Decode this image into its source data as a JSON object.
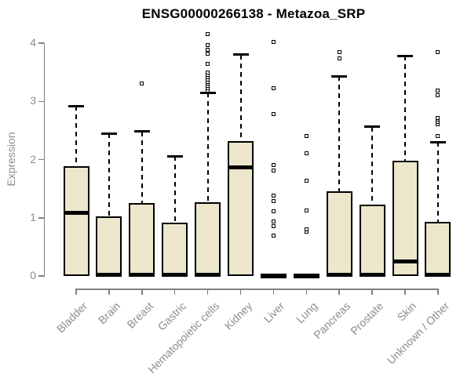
{
  "chart_data": {
    "type": "boxplot",
    "title": "ENSG00000266138 - Metazoa_SRP",
    "ylabel": "Expression",
    "xlabel": "",
    "ylim": [
      0,
      4
    ],
    "yticks": [
      0,
      1,
      2,
      3,
      4
    ],
    "grid": false,
    "legend": null,
    "categories": [
      "Bladder",
      "Brain",
      "Breast",
      "Gastric",
      "Hematopoietic cells",
      "Kidney",
      "Liver",
      "Lung",
      "Pancreas",
      "Prostate",
      "Skin",
      "Unknown / Other"
    ],
    "boxes": [
      {
        "category": "Bladder",
        "low": 0,
        "q1": 0,
        "median": 1.08,
        "q3": 1.88,
        "high": 2.92,
        "outliers": []
      },
      {
        "category": "Brain",
        "low": 0,
        "q1": 0,
        "median": 0.02,
        "q3": 1.03,
        "high": 2.45,
        "outliers": []
      },
      {
        "category": "Breast",
        "low": 0,
        "q1": 0,
        "median": 0.02,
        "q3": 1.25,
        "high": 2.48,
        "outliers": [
          3.3
        ]
      },
      {
        "category": "Gastric",
        "low": 0,
        "q1": 0,
        "median": 0.02,
        "q3": 0.92,
        "high": 2.06,
        "outliers": []
      },
      {
        "category": "Hematopoietic cells",
        "low": 0,
        "q1": 0,
        "median": 0.02,
        "q3": 1.26,
        "high": 3.15,
        "outliers": [
          3.18,
          3.22,
          3.26,
          3.3,
          3.34,
          3.38,
          3.42,
          3.46,
          3.5,
          3.64,
          3.82,
          3.89,
          3.96,
          4.16
        ]
      },
      {
        "category": "Kidney",
        "low": 0,
        "q1": 0,
        "median": 1.87,
        "q3": 2.32,
        "high": 3.8,
        "outliers": []
      },
      {
        "category": "Liver",
        "low": 0,
        "q1": 0,
        "median": 0.01,
        "q3": 0.02,
        "high": 0.02,
        "outliers": [
          0.7,
          0.86,
          0.93,
          1.11,
          1.28,
          1.38,
          1.81,
          1.91,
          2.78,
          3.22,
          4.02
        ]
      },
      {
        "category": "Lung",
        "low": 0,
        "q1": 0,
        "median": 0.01,
        "q3": 0.02,
        "high": 0.02,
        "outliers": [
          0.76,
          0.8,
          1.13,
          1.64,
          2.11,
          2.4
        ]
      },
      {
        "category": "Pancreas",
        "low": 0,
        "q1": 0,
        "median": 0.02,
        "q3": 1.46,
        "high": 3.43,
        "outliers": [
          3.74,
          3.84
        ]
      },
      {
        "category": "Prostate",
        "low": 0,
        "q1": 0,
        "median": 0.02,
        "q3": 1.22,
        "high": 2.56,
        "outliers": []
      },
      {
        "category": "Skin",
        "low": 0,
        "q1": 0,
        "median": 0.25,
        "q3": 1.98,
        "high": 3.78,
        "outliers": []
      },
      {
        "category": "Unknown / Other",
        "low": 0,
        "q1": 0,
        "median": 0.02,
        "q3": 0.93,
        "high": 2.3,
        "outliers": [
          2.41,
          2.61,
          2.65,
          2.69,
          2.72,
          3.1,
          3.19,
          3.84
        ]
      }
    ],
    "colors": {
      "box_fill": "#ECE7CC",
      "box_border": "#000000",
      "median": "#000000",
      "whisker": "#000000",
      "axis_line": "#808080",
      "tick_label": "#8d8d8d",
      "title": "#000000",
      "background": "#ffffff"
    }
  }
}
